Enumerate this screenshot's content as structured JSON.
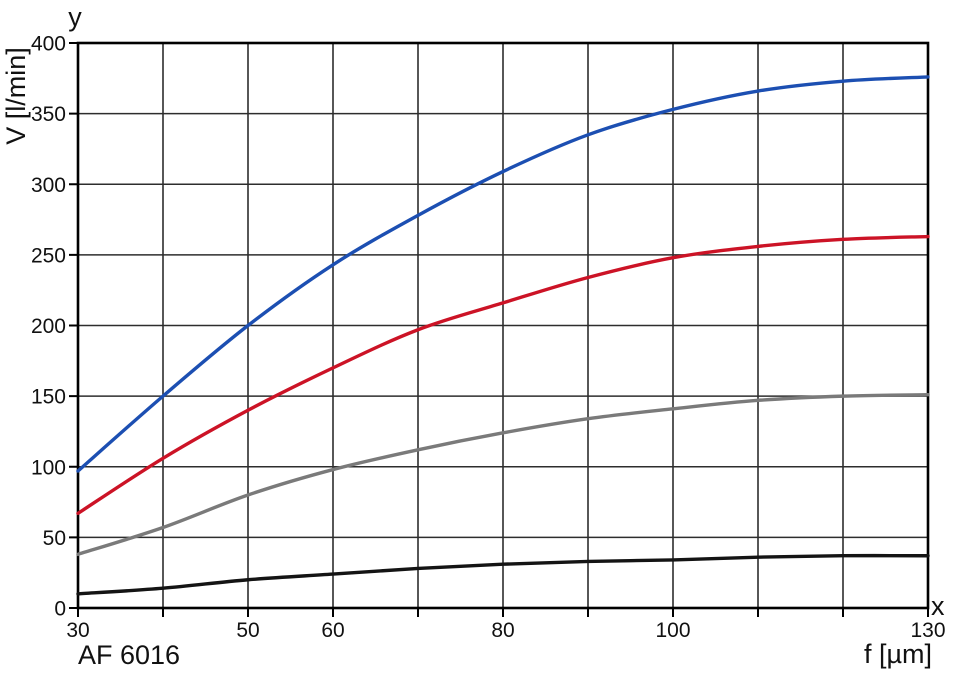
{
  "figure": {
    "y_axis_symbol": "y",
    "x_axis_symbol": "x",
    "ylabel": "V [l/min]",
    "xlabel": "f [µm]",
    "annotation": "AF 6016"
  },
  "chart_data": {
    "type": "line",
    "title": "",
    "xlabel": "f [µm]",
    "ylabel": "V [l/min]",
    "xlim": [
      30,
      130
    ],
    "ylim": [
      0,
      400
    ],
    "grid": true,
    "legend": false,
    "x_gridline_step": 10,
    "y_gridline_step": 50,
    "x_tick_labels": [
      30,
      50,
      60,
      80,
      100,
      130
    ],
    "y_tick_labels": [
      0,
      50,
      100,
      150,
      200,
      250,
      300,
      350,
      400
    ],
    "x": [
      30,
      40,
      50,
      60,
      70,
      80,
      90,
      100,
      110,
      120,
      130
    ],
    "series": [
      {
        "name": "curve-blue",
        "color": "#1c4fb2",
        "values": [
          97,
          150,
          200,
          243,
          278,
          309,
          335,
          353,
          366,
          373,
          376
        ]
      },
      {
        "name": "curve-red",
        "color": "#cc1326",
        "values": [
          67,
          106,
          140,
          170,
          197,
          216,
          234,
          248,
          256,
          261,
          263
        ]
      },
      {
        "name": "curve-gray",
        "color": "#7a7a7a",
        "values": [
          38,
          57,
          80,
          98,
          112,
          124,
          134,
          141,
          147,
          150,
          151
        ]
      },
      {
        "name": "curve-black",
        "color": "#141414",
        "values": [
          10,
          14,
          20,
          24,
          28,
          31,
          33,
          34,
          36,
          37,
          37
        ]
      }
    ],
    "annotation": "AF 6016"
  },
  "style": {
    "background": "#ffffff",
    "grid_color": "#2d2d2d",
    "axis_color": "#000000",
    "tick_label_color": "#111111",
    "tick_font_size": 21
  }
}
